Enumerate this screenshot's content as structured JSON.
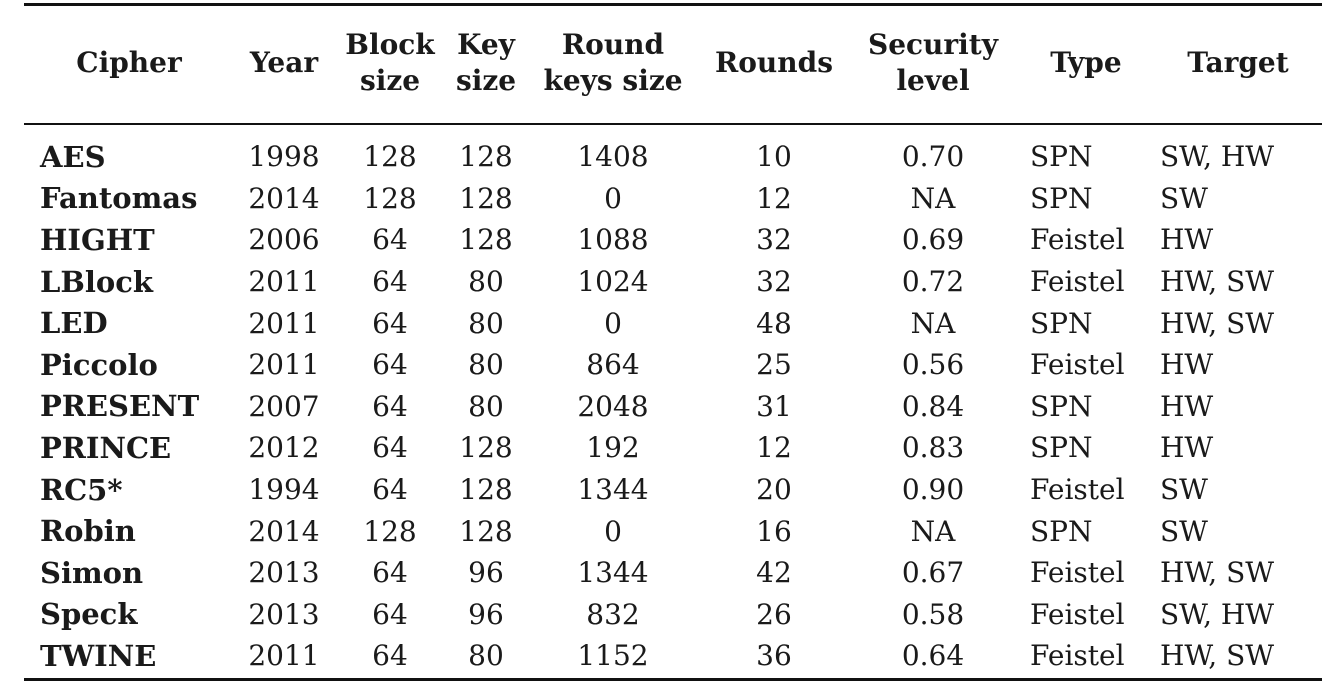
{
  "table": {
    "headers": [
      {
        "key": "cipher",
        "lines": [
          "Cipher"
        ]
      },
      {
        "key": "year",
        "lines": [
          "Year"
        ]
      },
      {
        "key": "block_size",
        "lines": [
          "Block",
          "size"
        ]
      },
      {
        "key": "key_size",
        "lines": [
          "Key",
          "size"
        ]
      },
      {
        "key": "round_keys_size",
        "lines": [
          "Round",
          "keys size"
        ]
      },
      {
        "key": "rounds",
        "lines": [
          "Rounds"
        ]
      },
      {
        "key": "security_level",
        "lines": [
          "Security",
          "level"
        ]
      },
      {
        "key": "type",
        "lines": [
          "Type"
        ]
      },
      {
        "key": "target",
        "lines": [
          "Target"
        ]
      }
    ],
    "rows": [
      [
        "AES",
        "1998",
        "128",
        "128",
        "1408",
        "10",
        "0.70",
        "SPN",
        "SW, HW"
      ],
      [
        "Fantomas",
        "2014",
        "128",
        "128",
        "0",
        "12",
        "NA",
        "SPN",
        "SW"
      ],
      [
        "HIGHT",
        "2006",
        "64",
        "128",
        "1088",
        "32",
        "0.69",
        "Feistel",
        "HW"
      ],
      [
        "LBlock",
        "2011",
        "64",
        "80",
        "1024",
        "32",
        "0.72",
        "Feistel",
        "HW, SW"
      ],
      [
        "LED",
        "2011",
        "64",
        "80",
        "0",
        "48",
        "NA",
        "SPN",
        "HW, SW"
      ],
      [
        "Piccolo",
        "2011",
        "64",
        "80",
        "864",
        "25",
        "0.56",
        "Feistel",
        "HW"
      ],
      [
        "PRESENT",
        "2007",
        "64",
        "80",
        "2048",
        "31",
        "0.84",
        "SPN",
        "HW"
      ],
      [
        "PRINCE",
        "2012",
        "64",
        "128",
        "192",
        "12",
        "0.83",
        "SPN",
        "HW"
      ],
      [
        "RC5*",
        "1994",
        "64",
        "128",
        "1344",
        "20",
        "0.90",
        "Feistel",
        "SW"
      ],
      [
        "Robin",
        "2014",
        "128",
        "128",
        "0",
        "16",
        "NA",
        "SPN",
        "SW"
      ],
      [
        "Simon",
        "2013",
        "64",
        "96",
        "1344",
        "42",
        "0.67",
        "Feistel",
        "HW, SW"
      ],
      [
        "Speck",
        "2013",
        "64",
        "96",
        "832",
        "26",
        "0.58",
        "Feistel",
        "SW, HW"
      ],
      [
        "TWINE",
        "2011",
        "64",
        "80",
        "1152",
        "36",
        "0.64",
        "Feistel",
        "HW, SW"
      ]
    ]
  }
}
